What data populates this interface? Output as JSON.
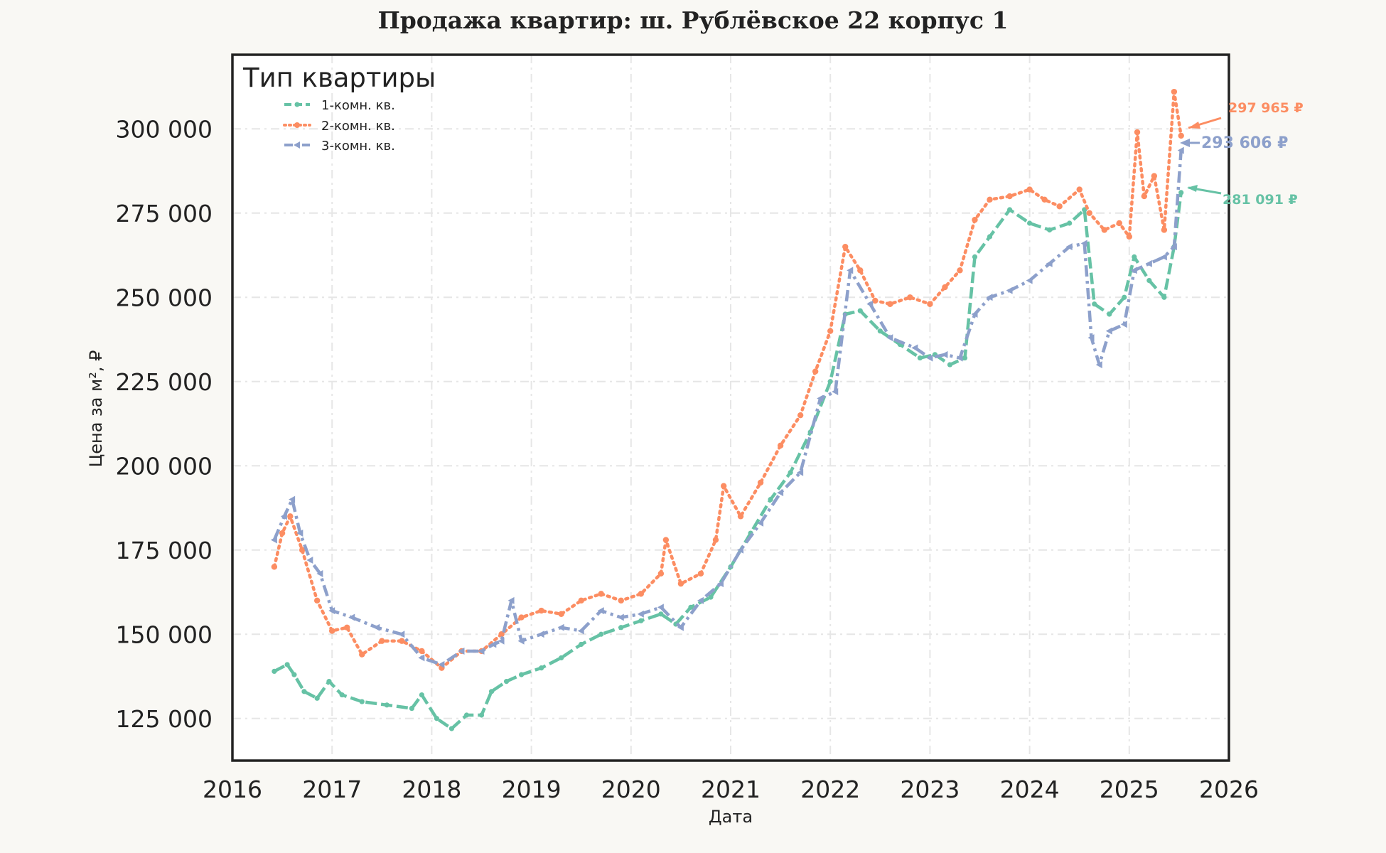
{
  "chart_data": {
    "type": "line",
    "title": "Продажа квартир: ш. Рублёвское 22 корпус 1",
    "xlabel": "Дата",
    "ylabel": "Цена за м², ₽",
    "xlim": [
      2016.0,
      2026.0
    ],
    "ylim": [
      112500,
      322000
    ],
    "x_ticks": [
      "2016",
      "2017",
      "2018",
      "2019",
      "2020",
      "2021",
      "2022",
      "2023",
      "2024",
      "2025",
      "2026"
    ],
    "y_ticks": [
      "125 000",
      "150 000",
      "175 000",
      "200 000",
      "225 000",
      "250 000",
      "275 000",
      "300 000"
    ],
    "y_tick_values": [
      125000,
      150000,
      175000,
      200000,
      225000,
      250000,
      275000,
      300000
    ],
    "grid": true,
    "legend": {
      "title": "Тип квартиры",
      "placement": "top-left"
    },
    "series": [
      {
        "name": "1-комн. кв.",
        "color": "#66c2a5",
        "style": "dashed",
        "last_label": "281 091 ₽",
        "x": [
          2016.42,
          2016.55,
          2016.62,
          2016.72,
          2016.85,
          2016.97,
          2017.1,
          2017.3,
          2017.55,
          2017.8,
          2017.9,
          2018.05,
          2018.2,
          2018.35,
          2018.5,
          2018.6,
          2018.75,
          2018.9,
          2019.1,
          2019.3,
          2019.5,
          2019.7,
          2019.9,
          2020.1,
          2020.3,
          2020.45,
          2020.6,
          2020.8,
          2021.0,
          2021.2,
          2021.4,
          2021.6,
          2021.8,
          2022.0,
          2022.15,
          2022.3,
          2022.5,
          2022.7,
          2022.9,
          2023.05,
          2023.2,
          2023.35,
          2023.45,
          2023.6,
          2023.8,
          2024.0,
          2024.2,
          2024.4,
          2024.55,
          2024.65,
          2024.8,
          2024.95,
          2025.05,
          2025.2,
          2025.35,
          2025.45,
          2025.52
        ],
        "y": [
          139000,
          141000,
          138000,
          133000,
          131000,
          136000,
          132000,
          130000,
          129000,
          128000,
          132000,
          125000,
          122000,
          126000,
          126000,
          133000,
          136000,
          138000,
          140000,
          143000,
          147000,
          150000,
          152000,
          154000,
          156000,
          153000,
          158000,
          161000,
          170000,
          180000,
          190000,
          198000,
          210000,
          225000,
          245000,
          246000,
          240000,
          236000,
          232000,
          233000,
          230000,
          232000,
          262000,
          268000,
          276000,
          272000,
          270000,
          272000,
          276000,
          248000,
          245000,
          250000,
          262000,
          255000,
          250000,
          265000,
          281091
        ]
      },
      {
        "name": "2-комн. кв.",
        "color": "#fc8d62",
        "style": "dotted",
        "last_label": "297 965 ₽",
        "x": [
          2016.42,
          2016.5,
          2016.58,
          2016.7,
          2016.85,
          2017.0,
          2017.15,
          2017.3,
          2017.5,
          2017.7,
          2017.9,
          2018.1,
          2018.3,
          2018.5,
          2018.7,
          2018.9,
          2019.1,
          2019.3,
          2019.5,
          2019.7,
          2019.9,
          2020.1,
          2020.3,
          2020.35,
          2020.5,
          2020.7,
          2020.85,
          2020.93,
          2021.1,
          2021.3,
          2021.5,
          2021.7,
          2021.85,
          2022.0,
          2022.15,
          2022.3,
          2022.45,
          2022.6,
          2022.8,
          2023.0,
          2023.15,
          2023.3,
          2023.45,
          2023.6,
          2023.8,
          2024.0,
          2024.15,
          2024.3,
          2024.5,
          2024.6,
          2024.75,
          2024.9,
          2025.0,
          2025.08,
          2025.15,
          2025.25,
          2025.35,
          2025.45,
          2025.52
        ],
        "y": [
          170000,
          180000,
          185000,
          175000,
          160000,
          151000,
          152000,
          144000,
          148000,
          148000,
          145000,
          140000,
          145000,
          145000,
          150000,
          155000,
          157000,
          156000,
          160000,
          162000,
          160000,
          162000,
          168000,
          178000,
          165000,
          168000,
          178000,
          194000,
          185000,
          195000,
          206000,
          215000,
          228000,
          240000,
          265000,
          258000,
          249000,
          248000,
          250000,
          248000,
          253000,
          258000,
          273000,
          279000,
          280000,
          282000,
          279000,
          277000,
          282000,
          275000,
          270000,
          272000,
          268000,
          299000,
          280000,
          286000,
          270000,
          311000,
          297965
        ]
      },
      {
        "name": "3-комн. кв.",
        "color": "#8da0cb",
        "style": "dashdot",
        "last_label": "293 606 ₽",
        "x": [
          2016.42,
          2016.52,
          2016.6,
          2016.68,
          2016.78,
          2016.88,
          2017.0,
          2017.2,
          2017.45,
          2017.7,
          2017.9,
          2018.1,
          2018.3,
          2018.5,
          2018.62,
          2018.7,
          2018.8,
          2018.9,
          2019.1,
          2019.3,
          2019.5,
          2019.7,
          2019.9,
          2020.1,
          2020.3,
          2020.5,
          2020.7,
          2020.9,
          2021.1,
          2021.3,
          2021.5,
          2021.7,
          2021.9,
          2022.05,
          2022.2,
          2022.4,
          2022.6,
          2022.85,
          2023.0,
          2023.15,
          2023.3,
          2023.45,
          2023.6,
          2023.8,
          2024.0,
          2024.2,
          2024.4,
          2024.55,
          2024.62,
          2024.7,
          2024.8,
          2024.95,
          2025.05,
          2025.2,
          2025.35,
          2025.45,
          2025.52
        ],
        "y": [
          178000,
          185000,
          190000,
          180000,
          172000,
          168000,
          157000,
          155000,
          152000,
          150000,
          143000,
          141000,
          145000,
          145000,
          147000,
          148000,
          160000,
          148000,
          150000,
          152000,
          151000,
          157000,
          155000,
          156000,
          158000,
          152000,
          160000,
          165000,
          175000,
          183000,
          192000,
          198000,
          220000,
          222000,
          258000,
          248000,
          238000,
          235000,
          232000,
          233000,
          232000,
          245000,
          250000,
          252000,
          255000,
          260000,
          265000,
          266000,
          238000,
          230000,
          240000,
          242000,
          258000,
          260000,
          262000,
          265000,
          293606
        ]
      }
    ]
  }
}
